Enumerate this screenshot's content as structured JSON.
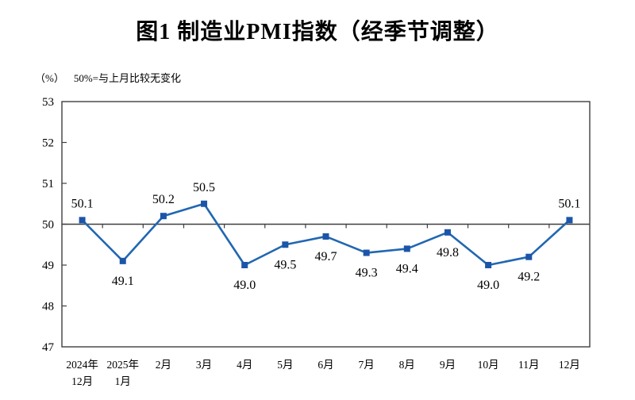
{
  "header": {
    "title": "图1 制造业PMI指数（经季节调整）"
  },
  "chart_data": {
    "type": "line",
    "title": "图1 制造业PMI指数（经季节调整）",
    "unit_label": "（%）",
    "note": "50%=与上月比较无变化",
    "categories": [
      [
        "2024年",
        "12月"
      ],
      [
        "2025年",
        "1月"
      ],
      [
        "2月"
      ],
      [
        "3月"
      ],
      [
        "4月"
      ],
      [
        "5月"
      ],
      [
        "6月"
      ],
      [
        "7月"
      ],
      [
        "8月"
      ],
      [
        "9月"
      ],
      [
        "10月"
      ],
      [
        "11月"
      ],
      [
        "12月"
      ]
    ],
    "values": [
      50.1,
      49.1,
      50.2,
      50.5,
      49.0,
      49.5,
      49.7,
      49.3,
      49.4,
      49.8,
      49.0,
      49.2,
      50.1
    ],
    "ylim": [
      47,
      53
    ],
    "ytick_step": 1,
    "reference_line": 50,
    "grid": false,
    "legend": null,
    "marker_shape": "square",
    "colors": {
      "line": "#2167b2",
      "marker": "#1b55a9",
      "axis": "#3f3f3f",
      "text": "#000000",
      "background": "#ffffff"
    }
  }
}
